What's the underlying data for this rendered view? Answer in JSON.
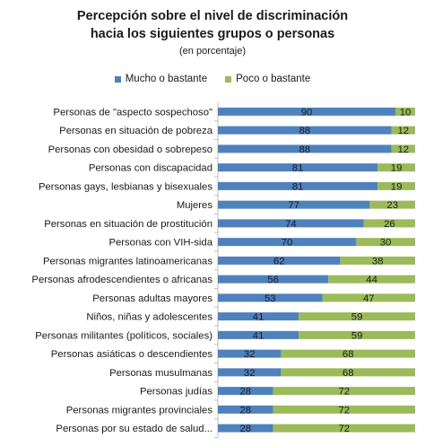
{
  "colors": {
    "mucho": "#4f81bd",
    "poco": "#9bbb59"
  },
  "chart_data": {
    "type": "bar",
    "orientation": "horizontal",
    "stacked": true,
    "title": "Percepción sobre el nivel de discriminación",
    "title_line2": "hacia los siguientes grupos o personas",
    "subtitle": "(en porcentaje)",
    "legend_position": "top",
    "xlim": [
      0,
      100
    ],
    "categories": [
      "Personas de \"aspecto sospechoso\"",
      "Personas en situación de pobreza",
      "Personas con obesidad o sobrepeso",
      "Personas con discapacidad",
      "Personas gays, lesbianas y bisexuales",
      "Mujeres",
      "Personas en situación de prostitución",
      "Personas con VIH-sida",
      "Personas migrantes latinoamericanas",
      "Personas afrodescendientes o africanas",
      "Personas adultas mayores",
      "Niños, niñas y adolescentes",
      "Personas militantes (políticos, sociales)",
      "Personas asiáticas o descendientes",
      "Personas musulmanas",
      "Personas judías",
      "Personas migrantes provinciales",
      "Personas por su estado de salud..."
    ],
    "series": [
      {
        "name": "Mucho o bastante",
        "values": [
          90,
          88,
          88,
          81,
          81,
          77,
          74,
          70,
          62,
          56,
          53,
          41,
          41,
          32,
          32,
          28,
          28,
          28
        ]
      },
      {
        "name": "Poco o bastante",
        "values": [
          10,
          12,
          12,
          19,
          19,
          23,
          26,
          30,
          38,
          44,
          47,
          59,
          59,
          68,
          68,
          72,
          72,
          72
        ]
      }
    ]
  }
}
